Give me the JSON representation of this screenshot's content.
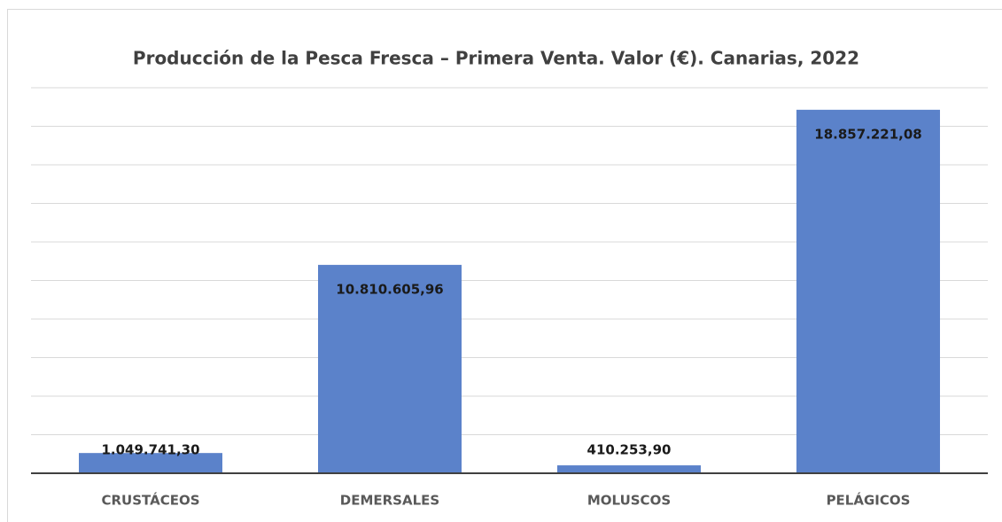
{
  "chart_data": {
    "type": "bar",
    "title": "Producción de la Pesca Fresca – Primera Venta. Valor (€). Canarias, 2022",
    "categories": [
      "CRUSTÁCEOS",
      "DEMERSALES",
      "MOLUSCOS",
      "PELÁGICOS"
    ],
    "values": [
      1049741.3,
      10810605.96,
      410253.9,
      18857221.08
    ],
    "value_labels": [
      "1.049.741,30",
      "10.810.605,96",
      "410.253,90",
      "18.857.221,08"
    ],
    "color": "#5b82ca",
    "ylim": [
      0,
      20000000
    ],
    "yticks": [
      0,
      2000000,
      4000000,
      6000000,
      8000000,
      10000000,
      12000000,
      14000000,
      16000000,
      18000000,
      20000000
    ],
    "grid": true
  }
}
